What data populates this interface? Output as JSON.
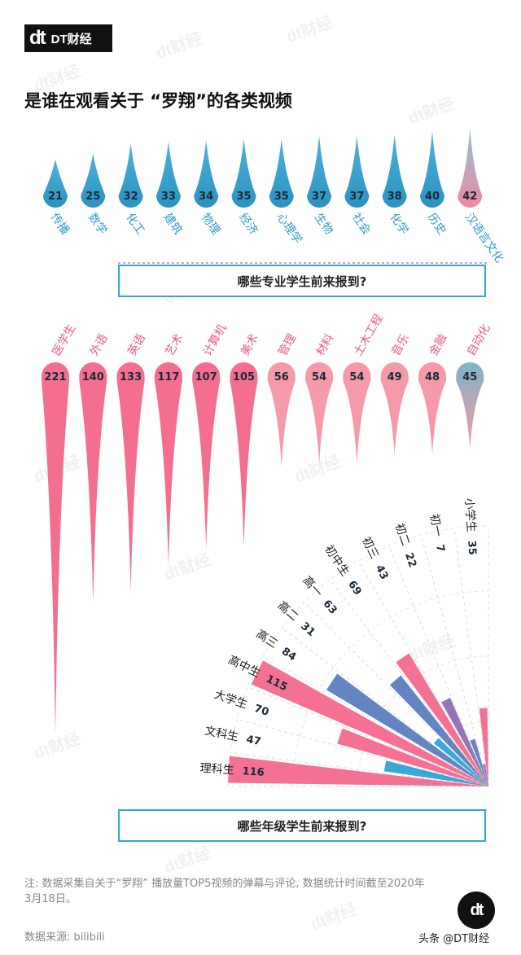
{
  "header": {
    "logo_mark": "dt",
    "logo_text": "DT财经",
    "title": "是谁在观看关于 “罗翔”的各类视频"
  },
  "watermark": "dt财经",
  "colors": {
    "blue": "#2f9cc6",
    "pink": "#f0698d",
    "lightpink": "#f4a1ae",
    "purple": "#8a6fb3",
    "teal": "#34a8c9"
  },
  "questions": {
    "majors": "哪些专业学生前来报到?",
    "grades": "哪些年级学生前来报到?"
  },
  "chart_data": [
    {
      "type": "bar",
      "title": "",
      "categories": [
        "传播",
        "数学",
        "化工",
        "建筑",
        "物理",
        "经济",
        "心理学",
        "生物",
        "社会",
        "化学",
        "历史",
        "汉语言文化"
      ],
      "values": [
        21,
        25,
        32,
        33,
        34,
        35,
        35,
        37,
        37,
        38,
        40,
        42
      ]
    },
    {
      "type": "bar",
      "title": "",
      "categories": [
        "医学生",
        "外语",
        "英语",
        "艺术",
        "计算机",
        "美术",
        "管理",
        "材料",
        "土木工程",
        "音乐",
        "金融",
        "自动化"
      ],
      "values": [
        221,
        140,
        133,
        117,
        107,
        105,
        56,
        54,
        54,
        49,
        48,
        45
      ]
    },
    {
      "type": "bar",
      "title": "",
      "categories": [
        "理科生",
        "文科生",
        "大学生",
        "高中生",
        "高三",
        "高二",
        "高一",
        "初中生",
        "初三",
        "初二",
        "初一",
        "小学生"
      ],
      "values": [
        116,
        47,
        70,
        115,
        84,
        31,
        63,
        69,
        43,
        22,
        7,
        35
      ]
    }
  ],
  "footer": {
    "note": "注: 数据采集自关于“罗翔” 播放量TOP5视频的弹幕与评论, 数据统计时间截至2020年3月18日。",
    "source": "数据来源: bilibili",
    "credit": "头条 @DT财经",
    "round_mark": "dt"
  }
}
